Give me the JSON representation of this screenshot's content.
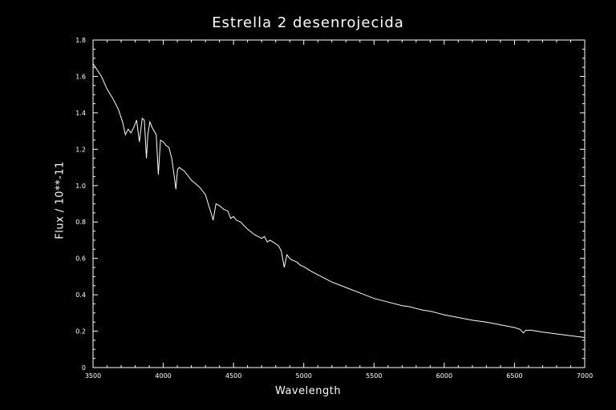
{
  "chart_data": {
    "type": "line",
    "title": "Estrella 2 desenrojecida",
    "xlabel": "Wavelength",
    "ylabel": "Flux / 10**-11",
    "xlim": [
      3500,
      7000
    ],
    "ylim": [
      0,
      1.8
    ],
    "grid": false,
    "x_ticks": [
      3500,
      4000,
      4500,
      5000,
      5500,
      6000,
      6500,
      7000
    ],
    "y_ticks": [
      0,
      0.2,
      0.4,
      0.6,
      0.8,
      1.0,
      1.2,
      1.4,
      1.6,
      1.8
    ],
    "x_tick_labels": [
      "3500",
      "4000",
      "4500",
      "5000",
      "5500",
      "6000",
      "6500",
      "7000"
    ],
    "y_tick_labels": [
      "0",
      "0.2",
      "0.4",
      "0.6",
      "0.8",
      "1.0",
      "1.2",
      "1.4",
      "1.6",
      "1.8"
    ],
    "colors": {
      "background": "#000000",
      "line": "#ffffff",
      "axes": "#ffffff"
    },
    "series": [
      {
        "x": [
          3500,
          3560,
          3600,
          3640,
          3680,
          3710,
          3730,
          3750,
          3770,
          3790,
          3810,
          3830,
          3850,
          3865,
          3880,
          3890,
          3905,
          3920,
          3950,
          3965,
          3980,
          4000,
          4020,
          4040,
          4060,
          4080,
          4090,
          4102,
          4115,
          4130,
          4150,
          4200,
          4230,
          4260,
          4300,
          4320,
          4340,
          4355,
          4375,
          4400,
          4430,
          4460,
          4480,
          4500,
          4520,
          4550,
          4600,
          4650,
          4700,
          4720,
          4740,
          4760,
          4780,
          4800,
          4820,
          4840,
          4861,
          4880,
          4900,
          4920,
          4950,
          4980,
          5000,
          5050,
          5100,
          5150,
          5200,
          5300,
          5400,
          5500,
          5600,
          5700,
          5750,
          5800,
          5850,
          5900,
          5950,
          6000,
          6100,
          6200,
          6300,
          6400,
          6500,
          6540,
          6563,
          6580,
          6620,
          6700,
          6800,
          6900,
          7000
        ],
        "y": [
          1.67,
          1.6,
          1.53,
          1.48,
          1.42,
          1.35,
          1.28,
          1.31,
          1.29,
          1.32,
          1.36,
          1.24,
          1.37,
          1.36,
          1.15,
          1.28,
          1.35,
          1.32,
          1.28,
          1.06,
          1.25,
          1.24,
          1.22,
          1.21,
          1.15,
          1.04,
          0.98,
          1.09,
          1.1,
          1.09,
          1.08,
          1.03,
          1.01,
          0.99,
          0.95,
          0.9,
          0.85,
          0.81,
          0.9,
          0.89,
          0.87,
          0.86,
          0.82,
          0.83,
          0.81,
          0.8,
          0.76,
          0.73,
          0.71,
          0.72,
          0.69,
          0.7,
          0.69,
          0.68,
          0.67,
          0.64,
          0.55,
          0.62,
          0.6,
          0.59,
          0.58,
          0.56,
          0.555,
          0.53,
          0.51,
          0.49,
          0.47,
          0.44,
          0.41,
          0.38,
          0.36,
          0.34,
          0.335,
          0.325,
          0.315,
          0.31,
          0.3,
          0.29,
          0.275,
          0.26,
          0.25,
          0.235,
          0.22,
          0.21,
          0.19,
          0.205,
          0.205,
          0.195,
          0.185,
          0.175,
          0.165
        ]
      }
    ]
  }
}
